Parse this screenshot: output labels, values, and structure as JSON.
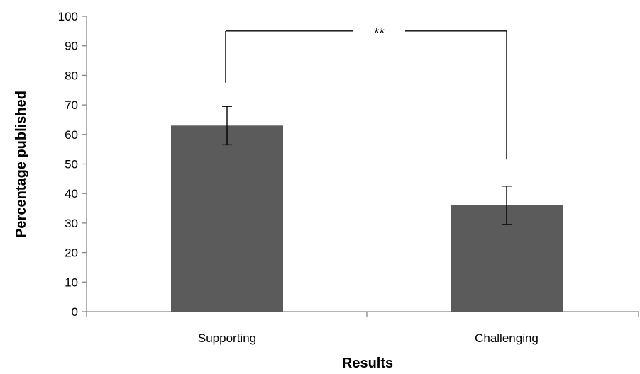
{
  "chart_data": {
    "type": "bar",
    "categories": [
      "Supporting",
      "Challenging"
    ],
    "values": [
      63,
      36
    ],
    "error_bars": [
      {
        "low": 56.5,
        "high": 69.5
      },
      {
        "low": 29.5,
        "high": 42.5
      }
    ],
    "xlabel": "Results",
    "ylabel": "Percentage published",
    "ylim": [
      0,
      100
    ],
    "yticks": [
      0,
      10,
      20,
      30,
      40,
      50,
      60,
      70,
      80,
      90,
      100
    ],
    "significance": {
      "label": "**",
      "between": [
        "Supporting",
        "Challenging"
      ],
      "bracket_level": 95
    },
    "grid": false,
    "legend": "none",
    "colors": {
      "bar": "#5b5b5b",
      "axis": "#868686",
      "error_bar": "#000000",
      "bracket": "#000000"
    }
  }
}
